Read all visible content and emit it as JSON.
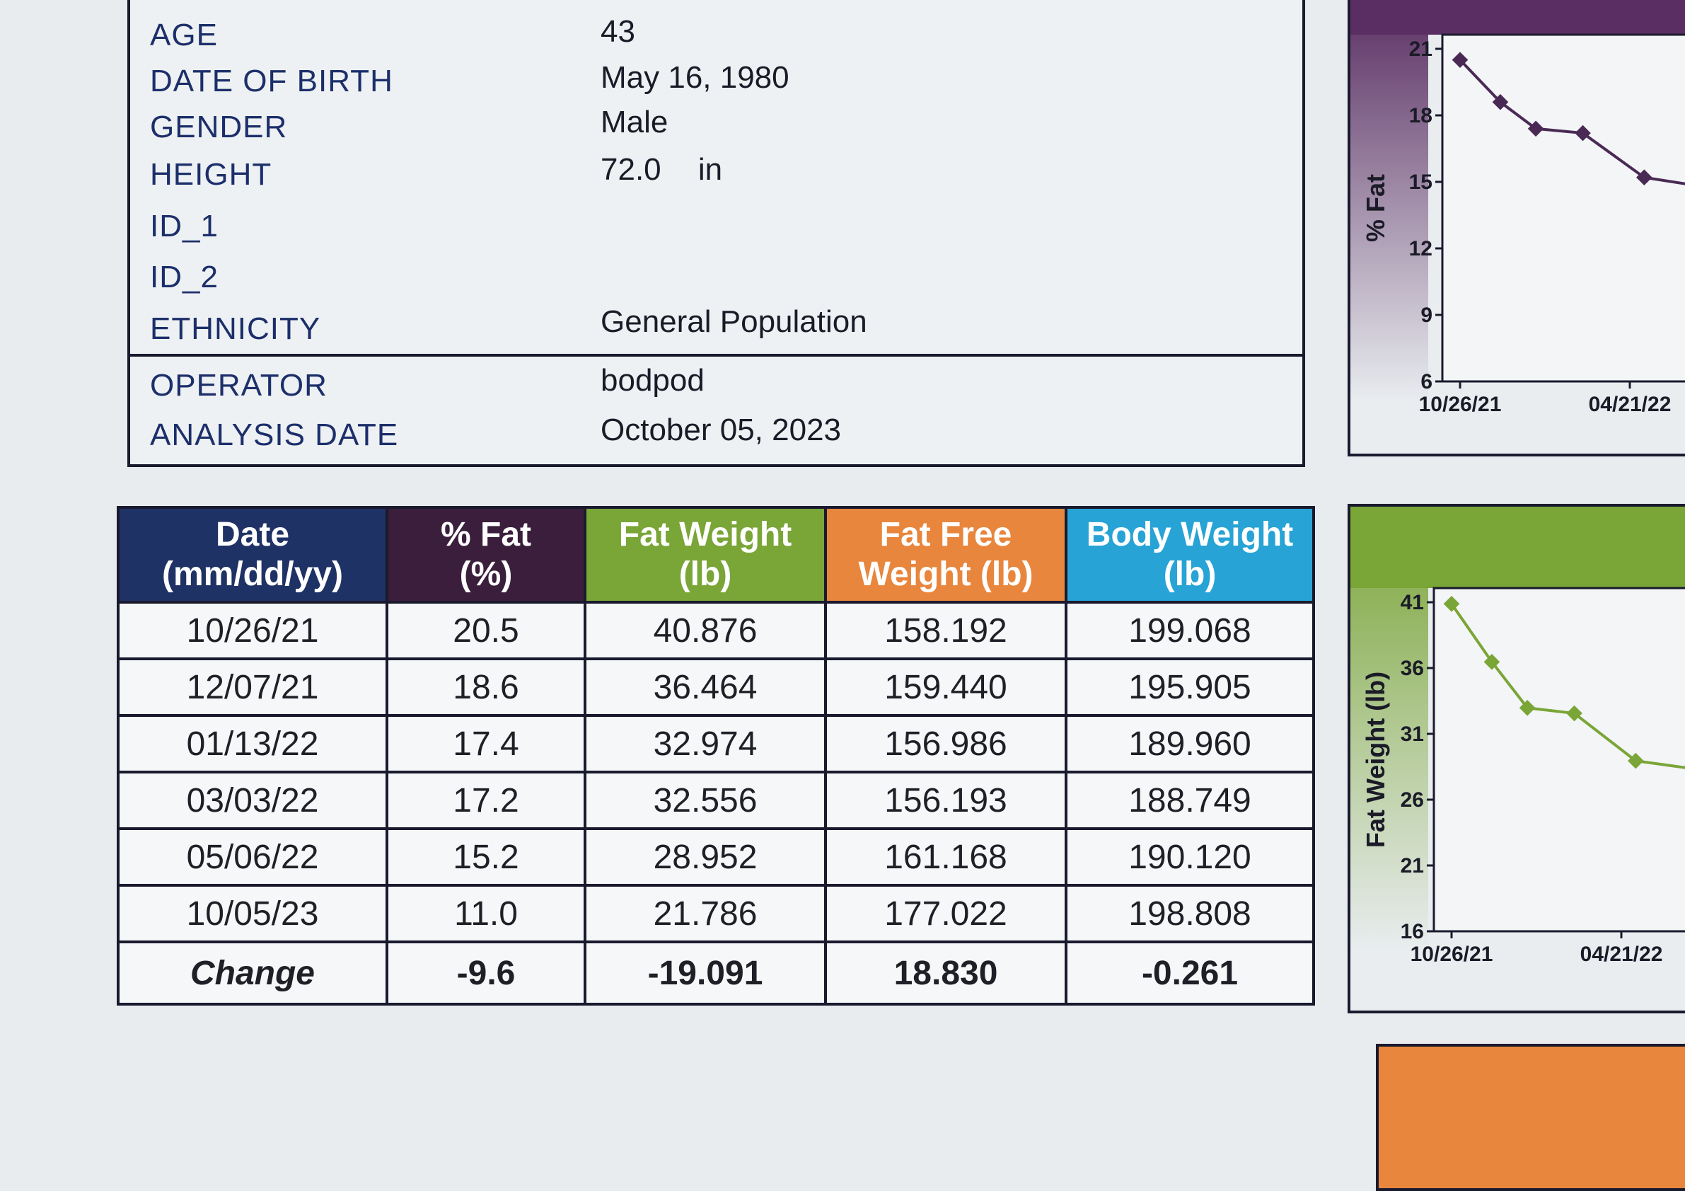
{
  "profile": {
    "age_label": "AGE",
    "age_value": "43",
    "dob_label": "DATE OF BIRTH",
    "dob_value": "May 16, 1980",
    "gender_label": "GENDER",
    "gender_value": "Male",
    "height_label": "HEIGHT",
    "height_value": "72.0",
    "height_unit": "in",
    "id1_label": "ID_1",
    "id2_label": "ID_2",
    "ethnicity_label": "ETHNICITY",
    "ethnicity_value": "General Population",
    "operator_label": "OPERATOR",
    "operator_value": "bodpod",
    "analysis_label": "ANALYSIS DATE",
    "analysis_value": "October 05, 2023"
  },
  "table": {
    "headers": {
      "date": [
        "Date",
        "(mm/dd/yy)"
      ],
      "fat_pct": [
        "% Fat",
        "(%)"
      ],
      "fat_weight": [
        "Fat Weight",
        "(lb)"
      ],
      "fat_free": [
        "Fat Free",
        "Weight (lb)"
      ],
      "body_weight": [
        "Body Weight",
        "(lb)"
      ]
    },
    "rows": [
      {
        "date": "10/26/21",
        "fat_pct": "20.5",
        "fat_weight": "40.876",
        "fat_free": "158.192",
        "body_weight": "199.068"
      },
      {
        "date": "12/07/21",
        "fat_pct": "18.6",
        "fat_weight": "36.464",
        "fat_free": "159.440",
        "body_weight": "195.905"
      },
      {
        "date": "01/13/22",
        "fat_pct": "17.4",
        "fat_weight": "32.974",
        "fat_free": "156.986",
        "body_weight": "189.960"
      },
      {
        "date": "03/03/22",
        "fat_pct": "17.2",
        "fat_weight": "32.556",
        "fat_free": "156.193",
        "body_weight": "188.749"
      },
      {
        "date": "05/06/22",
        "fat_pct": "15.2",
        "fat_weight": "28.952",
        "fat_free": "161.168",
        "body_weight": "190.120"
      },
      {
        "date": "10/05/23",
        "fat_pct": "11.0",
        "fat_weight": "21.786",
        "fat_free": "177.022",
        "body_weight": "198.808"
      }
    ],
    "change": {
      "label": "Change",
      "fat_pct": "-9.6",
      "fat_weight": "-19.091",
      "fat_free": "18.830",
      "body_weight": "-0.261"
    }
  },
  "chart_data": [
    {
      "type": "line",
      "ylabel": "% Fat",
      "ylim": [
        6,
        21
      ],
      "yticks": [
        "21",
        "18",
        "15",
        "12",
        "9",
        "6"
      ],
      "x_tick_labels": [
        "10/26/21",
        "04/21/22"
      ],
      "x": [
        "10/26/21",
        "12/07/21",
        "01/13/22",
        "03/03/22",
        "05/06/22"
      ],
      "values": [
        20.5,
        18.6,
        17.4,
        17.2,
        15.2
      ],
      "color": "#4a2a55"
    },
    {
      "type": "line",
      "ylabel": "Fat Weight (lb)",
      "ylim": [
        16,
        41
      ],
      "yticks": [
        "41",
        "36",
        "31",
        "26",
        "21",
        "16"
      ],
      "x_tick_labels": [
        "10/26/21",
        "04/21/22"
      ],
      "x": [
        "10/26/21",
        "12/07/21",
        "01/13/22",
        "03/03/22",
        "05/06/22"
      ],
      "values": [
        40.876,
        36.464,
        32.974,
        32.556,
        28.952
      ],
      "color": "#7aa537"
    }
  ]
}
